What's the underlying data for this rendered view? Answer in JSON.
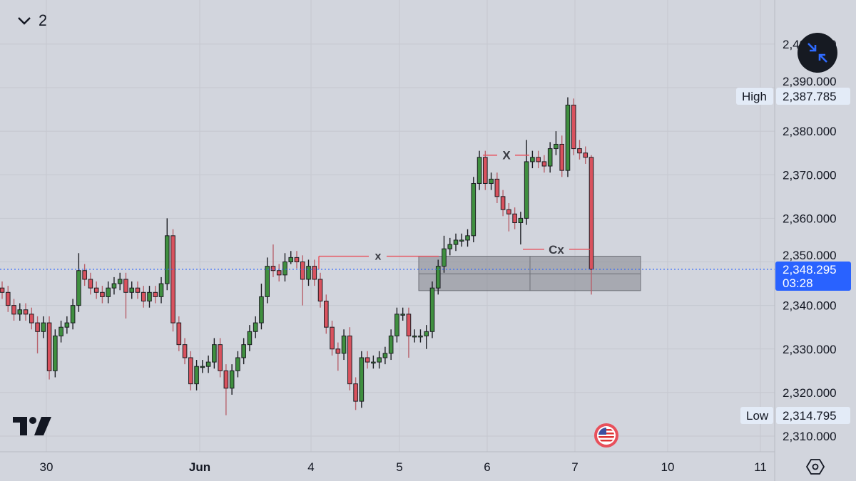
{
  "header": {
    "interval_toggle_icon": "chevron-down-icon",
    "interval_label": "2"
  },
  "colors": {
    "background": "#d2d5dd",
    "up": "#3f8f3f",
    "down": "#d9525e",
    "current_price": "#2962ff",
    "annotation": "#e8505b",
    "zone": "#8a8c94"
  },
  "chart_data": {
    "type": "candlestick",
    "x_ticks": [
      "30",
      "Jun",
      "4",
      "5",
      "6",
      "7",
      "10",
      "11"
    ],
    "y_ticks": [
      "2,400.000",
      "2,390.000",
      "2,380.000",
      "2,370.000",
      "2,360.000",
      "2,350.000",
      "2,340.000",
      "2,330.000",
      "2,320.000",
      "2,310.000"
    ],
    "y_tick_values": [
      2400,
      2390,
      2380,
      2370,
      2360,
      2350,
      2340,
      2330,
      2320,
      2310
    ],
    "ylim": [
      2306,
      2409
    ],
    "grid": true,
    "open": [
      2344,
      2343,
      2340,
      2338,
      2339,
      2338,
      2336,
      2334,
      2336,
      2325,
      2333,
      2335,
      2336,
      2340,
      2348,
      2346,
      2344,
      2343,
      2342,
      2344,
      2345,
      2346,
      2343,
      2344,
      2343,
      2341,
      2343,
      2342,
      2345,
      2356,
      2336,
      2331,
      2328,
      2322,
      2326,
      2326,
      2327,
      2331,
      2325,
      2321,
      2325,
      2328,
      2331,
      2334,
      2336,
      2342,
      2349,
      2348,
      2347,
      2350,
      2351,
      2350,
      2346,
      2349,
      2346,
      2341,
      2335,
      2330,
      2329,
      2333,
      2322,
      2318,
      2328,
      2327,
      2327,
      2328,
      2329,
      2333,
      2338,
      2338,
      2333,
      2333,
      2333,
      2334,
      2344,
      2349,
      2353,
      2354,
      2355,
      2355,
      2356,
      2368,
      2374,
      2368,
      2369,
      2365,
      2362,
      2361,
      2359,
      2360,
      2373,
      2374,
      2373,
      2372,
      2376,
      2377,
      2371,
      2386,
      2376,
      2375,
      2374
    ],
    "high": [
      2345.5,
      2344.5,
      2341.5,
      2340.5,
      2340.5,
      2339.5,
      2337.5,
      2337.5,
      2337.5,
      2334.5,
      2336.5,
      2337.5,
      2341.5,
      2352,
      2349.5,
      2347.5,
      2345.5,
      2344.5,
      2345.5,
      2346.5,
      2347.5,
      2347.5,
      2345.5,
      2345.5,
      2344.5,
      2344.5,
      2344.5,
      2346.5,
      2360,
      2357.5,
      2337.5,
      2332.5,
      2329.5,
      2327.5,
      2327.5,
      2328.5,
      2332.5,
      2332.5,
      2326.5,
      2326.5,
      2329.5,
      2332.5,
      2335.5,
      2337.5,
      2345,
      2351,
      2354,
      2349.5,
      2352,
      2352.5,
      2352.5,
      2351.5,
      2350.5,
      2350.5,
      2347.5,
      2342.5,
      2336.5,
      2331.5,
      2334.5,
      2335,
      2323.5,
      2329.5,
      2329.5,
      2328.5,
      2329.5,
      2330.5,
      2334.5,
      2339.5,
      2339.5,
      2339.5,
      2334.5,
      2334.5,
      2335.5,
      2345.5,
      2350.5,
      2356,
      2355.5,
      2356.5,
      2356.5,
      2357.5,
      2369.5,
      2375.5,
      2375.5,
      2370.5,
      2370.5,
      2366.5,
      2363.5,
      2362.5,
      2361.5,
      2378,
      2375.5,
      2375.5,
      2374.5,
      2377.5,
      2380,
      2379,
      2387.785,
      2387.5,
      2378,
      2376.5,
      2374.5
    ],
    "low": [
      2341.5,
      2338.5,
      2336.5,
      2336.5,
      2336.5,
      2334.5,
      2329,
      2332.5,
      2323,
      2323.5,
      2331.5,
      2333.5,
      2334.5,
      2338.5,
      2344.5,
      2342.5,
      2341.5,
      2340.5,
      2340.5,
      2342.5,
      2343.5,
      2337,
      2341.5,
      2341.5,
      2339.5,
      2339.5,
      2340.5,
      2340.5,
      2343.5,
      2334,
      2329.5,
      2326.5,
      2320.5,
      2320.5,
      2324.5,
      2324.5,
      2325.5,
      2323.5,
      2314.795,
      2319.5,
      2323.5,
      2326.5,
      2329.5,
      2332.5,
      2334.5,
      2340.5,
      2346.5,
      2345.5,
      2345.5,
      2349.5,
      2348.5,
      2340,
      2344.5,
      2344.5,
      2339.5,
      2333.5,
      2328.5,
      2325,
      2327.5,
      2320.5,
      2316,
      2316.5,
      2325.5,
      2325.5,
      2325.5,
      2326.5,
      2327.5,
      2331.5,
      2336.5,
      2328,
      2331.5,
      2331.5,
      2330,
      2332.5,
      2342.5,
      2347.5,
      2351.5,
      2352.5,
      2353.5,
      2353.5,
      2354.5,
      2366.5,
      2366.5,
      2366.5,
      2363.5,
      2360.5,
      2357,
      2357.5,
      2354,
      2358.5,
      2371.5,
      2371.5,
      2370.5,
      2370.5,
      2374.5,
      2369.5,
      2369.5,
      2374.5,
      2373.5,
      2372.5,
      2342.5
    ],
    "close": [
      2343,
      2340,
      2338,
      2339,
      2338,
      2336,
      2334,
      2336,
      2325,
      2333,
      2335,
      2336,
      2340,
      2348,
      2346,
      2344,
      2343,
      2342,
      2344,
      2345,
      2346,
      2343,
      2344,
      2343,
      2341,
      2343,
      2342,
      2345,
      2356,
      2336,
      2331,
      2328,
      2322,
      2326,
      2326,
      2327,
      2331,
      2325,
      2321,
      2325,
      2328,
      2331,
      2334,
      2336,
      2342,
      2349,
      2348,
      2347,
      2350,
      2351,
      2350,
      2346,
      2349,
      2346,
      2341,
      2335,
      2330,
      2329,
      2333,
      2322,
      2318,
      2328,
      2327,
      2327,
      2328,
      2329,
      2333,
      2338,
      2338,
      2333,
      2333,
      2333,
      2334,
      2344,
      2349,
      2353,
      2354,
      2355,
      2355,
      2356,
      2368,
      2374,
      2368,
      2369,
      2365,
      2362,
      2361,
      2359,
      2360,
      2373,
      2374,
      2373,
      2372,
      2376,
      2377,
      2371,
      2386,
      2376,
      2375,
      2374,
      2348.295
    ],
    "current_price": {
      "value": 2348.295,
      "label": "2,348.295",
      "countdown": "03:28"
    },
    "high_marker": {
      "label": "High",
      "value_label": "2,387.785",
      "value": 2387.785
    },
    "low_marker": {
      "label": "Low",
      "value_label": "2,314.795",
      "value": 2314.795
    },
    "annotations": [
      {
        "label": "X",
        "price": 2374.5
      },
      {
        "label": "Cx",
        "price": 2352.9
      },
      {
        "label": "x",
        "price": 2351.3
      }
    ],
    "zone": {
      "top": 2351.3,
      "bottom": 2343.4
    }
  },
  "icons": {
    "logo": "tradingview-logo",
    "collapse": "collapse-arrows-icon",
    "flag": "us-flag-icon",
    "settings": "hexagon-settings-icon"
  }
}
